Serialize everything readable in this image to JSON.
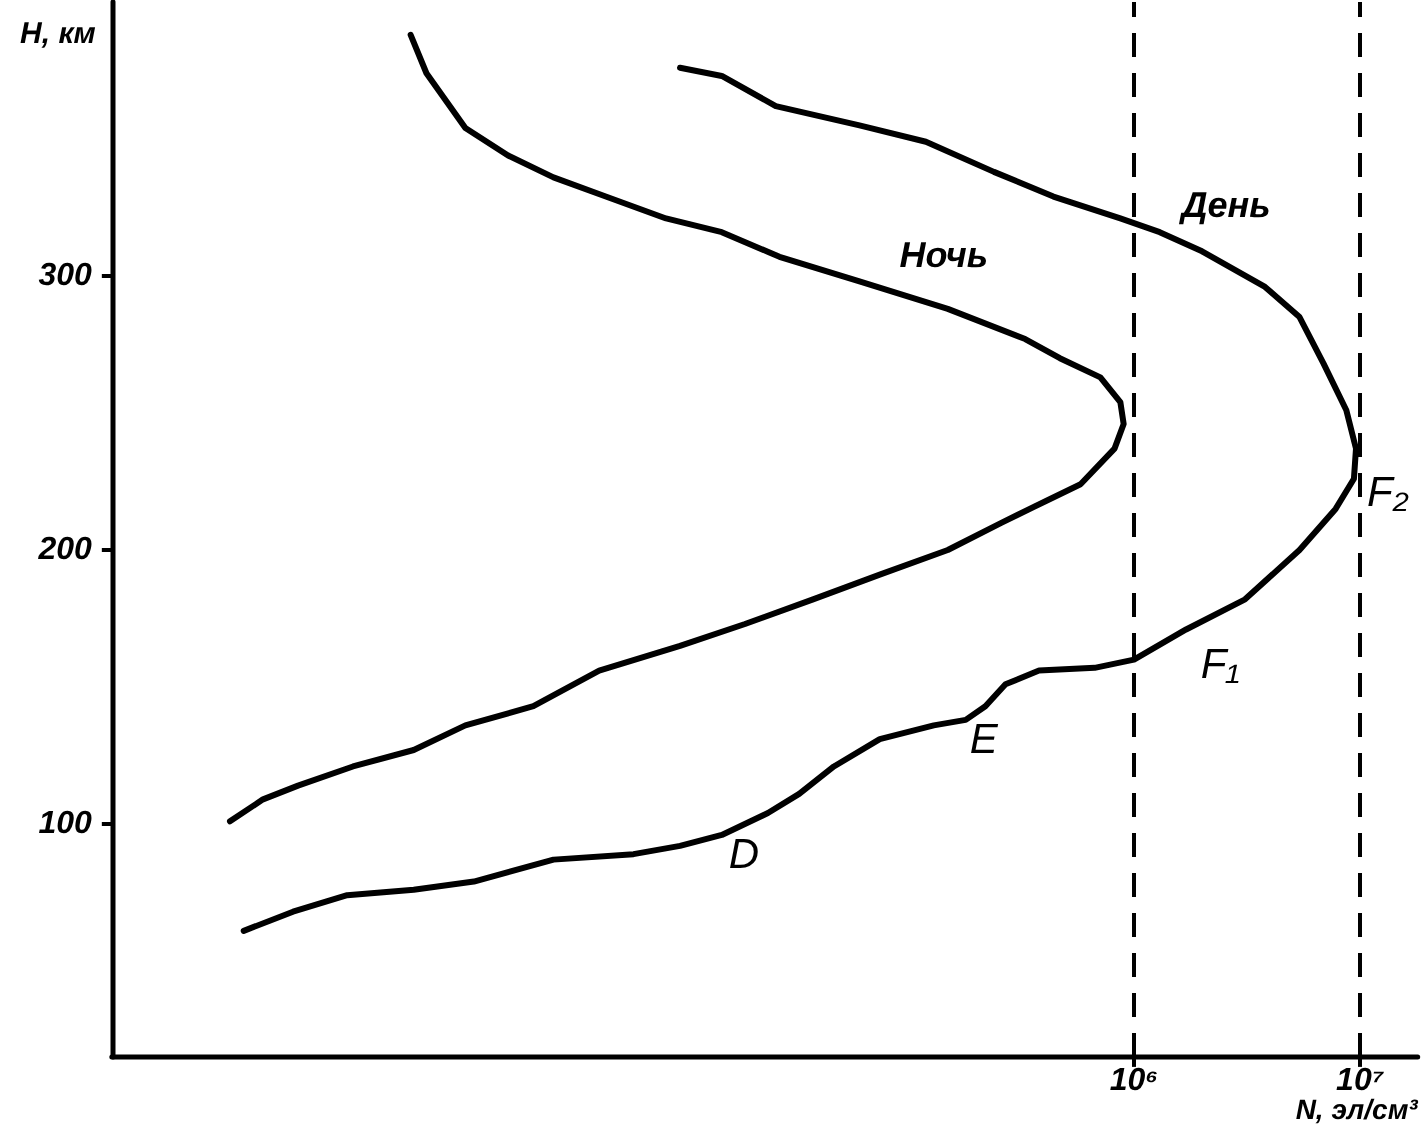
{
  "chart_data": {
    "type": "line",
    "xlabel": "N, эл/см³",
    "ylabel": "H, км",
    "log": "x",
    "xlim": [
      30,
      18000000
    ],
    "xticks": [
      {
        "value": 1000000,
        "label": "10⁶"
      },
      {
        "value": 10000000,
        "label": "10⁷"
      }
    ],
    "ylim": [
      15,
      400
    ],
    "yticks": [
      100,
      200,
      300
    ],
    "series": [
      {
        "name": "Ночь",
        "color": "#000000",
        "x": [
          630,
          740,
          1100,
          1700,
          2700,
          4600,
          8500,
          15000,
          27000,
          61000,
          150000,
          330000,
          470000,
          710000,
          870000,
          900000,
          820000,
          580000,
          410000,
          260000,
          150000,
          75000,
          38000,
          19000,
          9800,
          4300,
          2200,
          1100,
          650,
          350,
          200,
          140,
          100
        ],
        "values": [
          388,
          374,
          354,
          344,
          336,
          329,
          321,
          316,
          307,
          298,
          288,
          277,
          270,
          263,
          254,
          246,
          237,
          224,
          218,
          210,
          200,
          191,
          182,
          173,
          165,
          156,
          143,
          136,
          127,
          121,
          114,
          109,
          101
        ]
      },
      {
        "name": "День",
        "color": "#000000",
        "x": [
          9800,
          15000,
          26000,
          61000,
          120000,
          240000,
          440000,
          870000,
          1300000,
          2000000,
          3800000,
          5400000,
          6900000,
          8700000,
          9600000,
          9400000,
          7800000,
          5400000,
          3100000,
          1700000,
          1000000,
          670000,
          380000,
          270000,
          220000,
          180000,
          130000,
          75000,
          47000,
          33000,
          24000,
          15000,
          9800,
          6100,
          2700,
          1200,
          650,
          330,
          190,
          115
        ],
        "values": [
          376,
          373,
          362,
          355,
          349,
          338,
          329,
          321,
          316,
          309,
          296,
          285,
          268,
          251,
          237,
          226,
          215,
          200,
          182,
          171,
          160,
          157,
          156,
          151,
          143,
          138,
          136,
          131,
          121,
          111,
          104,
          96,
          92,
          89,
          87,
          79,
          76,
          74,
          68,
          61
        ]
      }
    ],
    "ref_lines": [
      {
        "axis": "x",
        "value": 1000000,
        "line_style": "dashed",
        "color": "#000000"
      },
      {
        "axis": "x",
        "value": 10000000,
        "line_style": "dashed",
        "color": "#000000"
      }
    ],
    "annotations": [
      {
        "text": "D",
        "x": 15000,
        "y": 96
      },
      {
        "text": "E",
        "x": 180000,
        "y": 138
      },
      {
        "text": "F₁",
        "x": 1700000,
        "y": 171
      },
      {
        "text": "F₂",
        "x": 9400000,
        "y": 226
      }
    ]
  }
}
